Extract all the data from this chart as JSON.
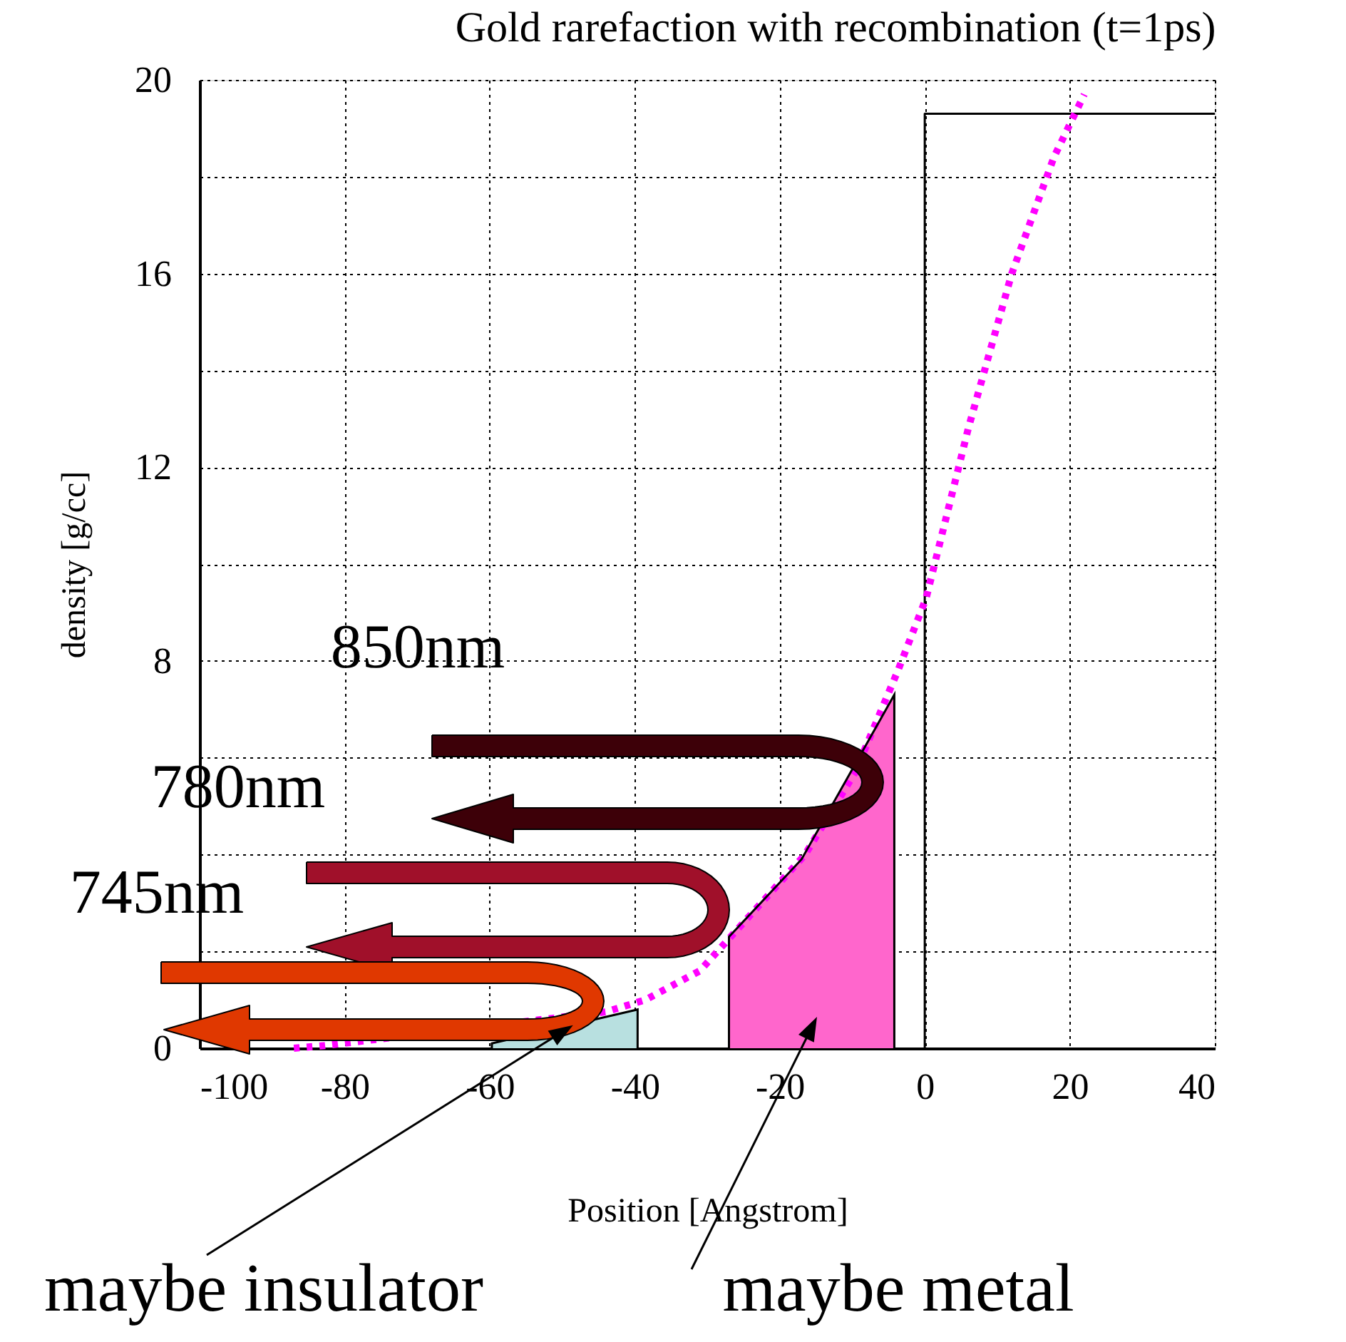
{
  "chart_data": {
    "type": "line",
    "title": "Gold rarefaction with recombination (t=1ps)",
    "xlabel": "Position [Angstrom]",
    "ylabel": "density [g/cc]",
    "xlim": [
      -100,
      40
    ],
    "ylim": [
      0,
      20
    ],
    "xticks": [
      -100,
      -80,
      -60,
      -40,
      -20,
      0,
      20,
      40
    ],
    "yticks": [
      0,
      {
        "value": 2,
        "label": null
      },
      {
        "value": 4,
        "label": null
      },
      {
        "value": 6,
        "label": null
      },
      8,
      {
        "value": 10,
        "label": null
      },
      12,
      {
        "value": 14,
        "label": null
      },
      16,
      {
        "value": 18,
        "label": null
      },
      20
    ],
    "grid": true,
    "marker": "none",
    "series": [
      {
        "color": "#000000",
        "line_style": "solid",
        "x": [
          0,
          0,
          40
        ],
        "values": [
          0,
          19.3,
          19.3
        ]
      },
      {
        "type": "area",
        "color": "#ff66cc",
        "x": [
          -27,
          -17,
          -4.2
        ],
        "values": [
          2.3,
          3.9,
          7.3
        ]
      },
      {
        "type": "area",
        "color": "#b8e0e0",
        "x": [
          -59.7,
          -39.6
        ],
        "values": [
          0.1,
          0.8
        ]
      },
      {
        "color": "#ff00ff",
        "line_style": "dotted",
        "x": [
          -87,
          -83,
          -44,
          -38.5,
          -31,
          -16.5,
          -9.6,
          -3.7,
          0.2,
          6,
          12,
          17.8,
          22
        ],
        "values": [
          0,
          0.05,
          0.75,
          1.0,
          1.6,
          4.0,
          5.7,
          7.8,
          9.3,
          12.8,
          16,
          18.4,
          19.7
        ]
      }
    ],
    "annotations": [
      "850nm",
      "780nm",
      "745nm",
      "maybe insulator",
      "maybe metal"
    ]
  }
}
